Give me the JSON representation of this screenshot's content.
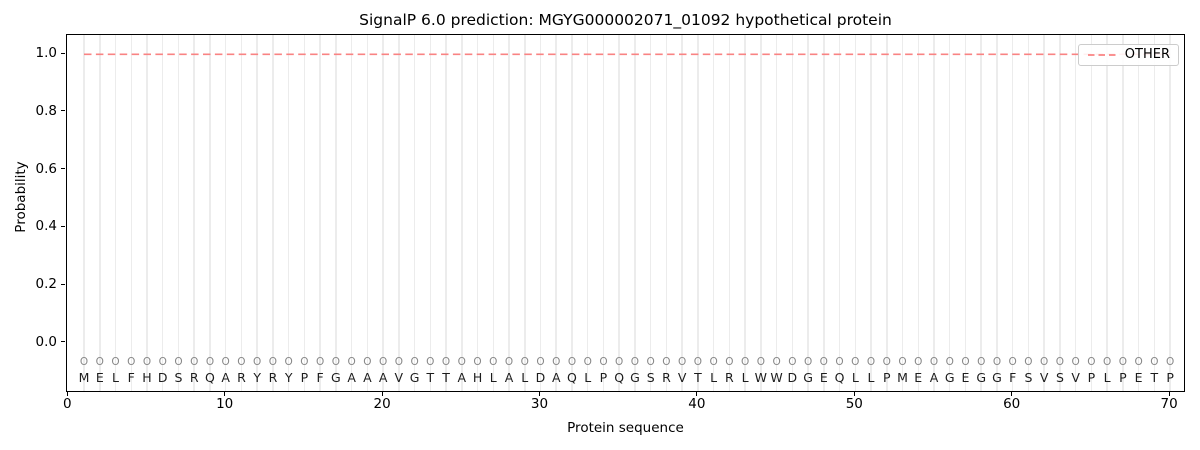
{
  "title": "SignalP 6.0 prediction: MGYG000002071_01092 hypothetical protein",
  "axes": {
    "xlabel": "Protein sequence",
    "ylabel": "Probability",
    "x_ticks": [
      "0",
      "10",
      "20",
      "30",
      "40",
      "50",
      "60",
      "70"
    ],
    "y_ticks": [
      "0.0",
      "0.2",
      "0.4",
      "0.6",
      "0.8",
      "1.0"
    ]
  },
  "legend": {
    "label": "OTHER",
    "line_style": "dashed",
    "position": "upper-right"
  },
  "sequence": {
    "residues": "MELFHDSRQARYRYPFGAAAVGTTAHLALDAQLPQGSRVTLRLWWDGEQLLPMEAGEGGFSVSVPLPETP",
    "per_position_marker": "O",
    "length": 70
  },
  "colors": {
    "other_line": "#f98383",
    "gridline": "#ececec",
    "axis": "#000000",
    "marker": "#888888",
    "letter": "#1c1c1c",
    "legend_border": "#cccccc"
  },
  "chart_data": {
    "type": "line",
    "title": "SignalP 6.0 prediction: MGYG000002071_01092 hypothetical protein",
    "xlabel": "Protein sequence",
    "ylabel": "Probability",
    "x_ticks": [
      0,
      10,
      20,
      30,
      40,
      50,
      60,
      70
    ],
    "y_ticks": [
      0.0,
      0.2,
      0.4,
      0.6,
      0.8,
      1.0
    ],
    "xlim": [
      0,
      71
    ],
    "ylim": [
      -0.17,
      1.07
    ],
    "grid": "vertical gridline at every residue position, no horizontal gridlines",
    "legend_position": "upper-right",
    "series": [
      {
        "name": "OTHER",
        "style": "dashed",
        "color": "#f98383",
        "x": [
          1,
          2,
          3,
          4,
          5,
          6,
          7,
          8,
          9,
          10,
          11,
          12,
          13,
          14,
          15,
          16,
          17,
          18,
          19,
          20,
          21,
          22,
          23,
          24,
          25,
          26,
          27,
          28,
          29,
          30,
          31,
          32,
          33,
          34,
          35,
          36,
          37,
          38,
          39,
          40,
          41,
          42,
          43,
          44,
          45,
          46,
          47,
          48,
          49,
          50,
          51,
          52,
          53,
          54,
          55,
          56,
          57,
          58,
          59,
          60,
          61,
          62,
          63,
          64,
          65,
          66,
          67,
          68,
          69,
          70
        ],
        "values": [
          1.0,
          1.0,
          1.0,
          1.0,
          1.0,
          1.0,
          1.0,
          1.0,
          1.0,
          1.0,
          1.0,
          1.0,
          1.0,
          1.0,
          1.0,
          1.0,
          1.0,
          1.0,
          1.0,
          1.0,
          1.0,
          1.0,
          1.0,
          1.0,
          1.0,
          1.0,
          1.0,
          1.0,
          1.0,
          1.0,
          1.0,
          1.0,
          1.0,
          1.0,
          1.0,
          1.0,
          1.0,
          1.0,
          1.0,
          1.0,
          1.0,
          1.0,
          1.0,
          1.0,
          1.0,
          1.0,
          1.0,
          1.0,
          1.0,
          1.0,
          1.0,
          1.0,
          1.0,
          1.0,
          1.0,
          1.0,
          1.0,
          1.0,
          1.0,
          1.0,
          1.0,
          1.0,
          1.0,
          1.0,
          1.0,
          1.0,
          1.0,
          1.0,
          1.0,
          1.0
        ],
        "note": "flat dashed line at probability ~1.0 across all 70 positions"
      }
    ],
    "x_sequence_labels": "MELFHDSRQARYRYPFGAAAVGTTAHLALDAQLPQGSRVTLRLWWDGEQLLPMEAGEGGFSVSVPLPETP",
    "per_position_predicted_label": "O (repeated at every one of the 70 positions)"
  }
}
